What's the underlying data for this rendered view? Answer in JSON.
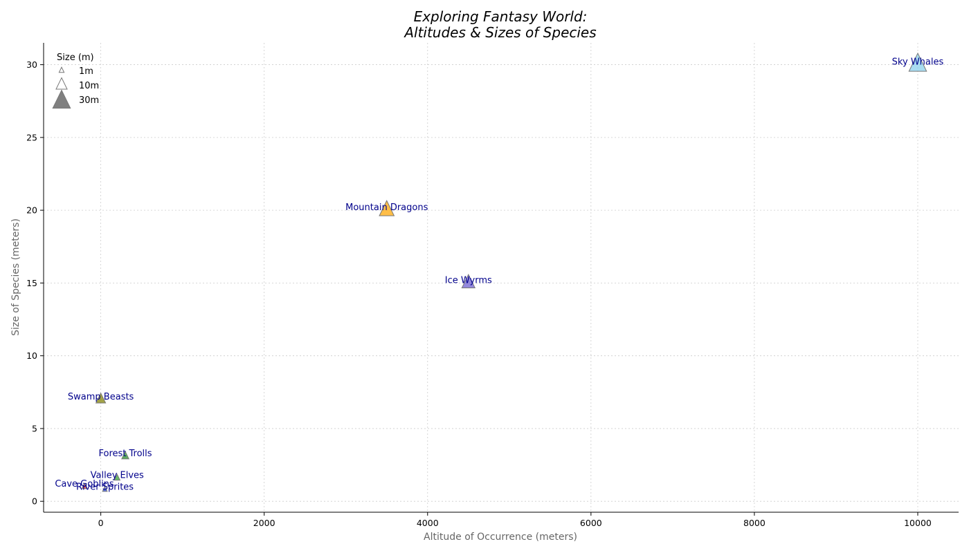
{
  "chart_data": {
    "type": "scatter",
    "marker": "triangle",
    "title_lines": [
      "Exploring Fantasy World:",
      "Altitudes & Sizes of Species"
    ],
    "xlabel": "Altitude of Occurrence (meters)",
    "ylabel": "Size of Species (meters)",
    "xlim": [
      -700,
      10500
    ],
    "ylim": [
      -0.75,
      31.5
    ],
    "xticks": [
      0,
      2000,
      4000,
      6000,
      8000,
      10000
    ],
    "yticks": [
      0,
      5,
      10,
      15,
      20,
      25,
      30
    ],
    "grid": true,
    "label_color": "#00008B",
    "points": [
      {
        "name": "Cave Goblins",
        "x": -200,
        "y": 1.0,
        "color": "#d62728"
      },
      {
        "name": "River Sprites",
        "x": 50,
        "y": 0.8,
        "color": "#1f3fd6"
      },
      {
        "name": "Valley Elves",
        "x": 200,
        "y": 1.6,
        "color": "#2ca02c"
      },
      {
        "name": "Forest Trolls",
        "x": 300,
        "y": 3.1,
        "color": "#228B22"
      },
      {
        "name": "Swamp Beasts",
        "x": 0,
        "y": 7.0,
        "color": "#808000"
      },
      {
        "name": "Mountain Dragons",
        "x": 3500,
        "y": 20.0,
        "color": "#FFA500"
      },
      {
        "name": "Ice Wyrms",
        "x": 4500,
        "y": 15.0,
        "color": "#6A5ACD"
      },
      {
        "name": "Sky Whales",
        "x": 10000,
        "y": 30.0,
        "color": "#87CEEB"
      }
    ],
    "legend": {
      "title": "Size (m)",
      "placement": "top-left",
      "entries": [
        {
          "label": "1m",
          "size": 1
        },
        {
          "label": "10m",
          "size": 10
        },
        {
          "label": "30m",
          "size": 30
        }
      ],
      "marker_color": "#808080"
    }
  }
}
